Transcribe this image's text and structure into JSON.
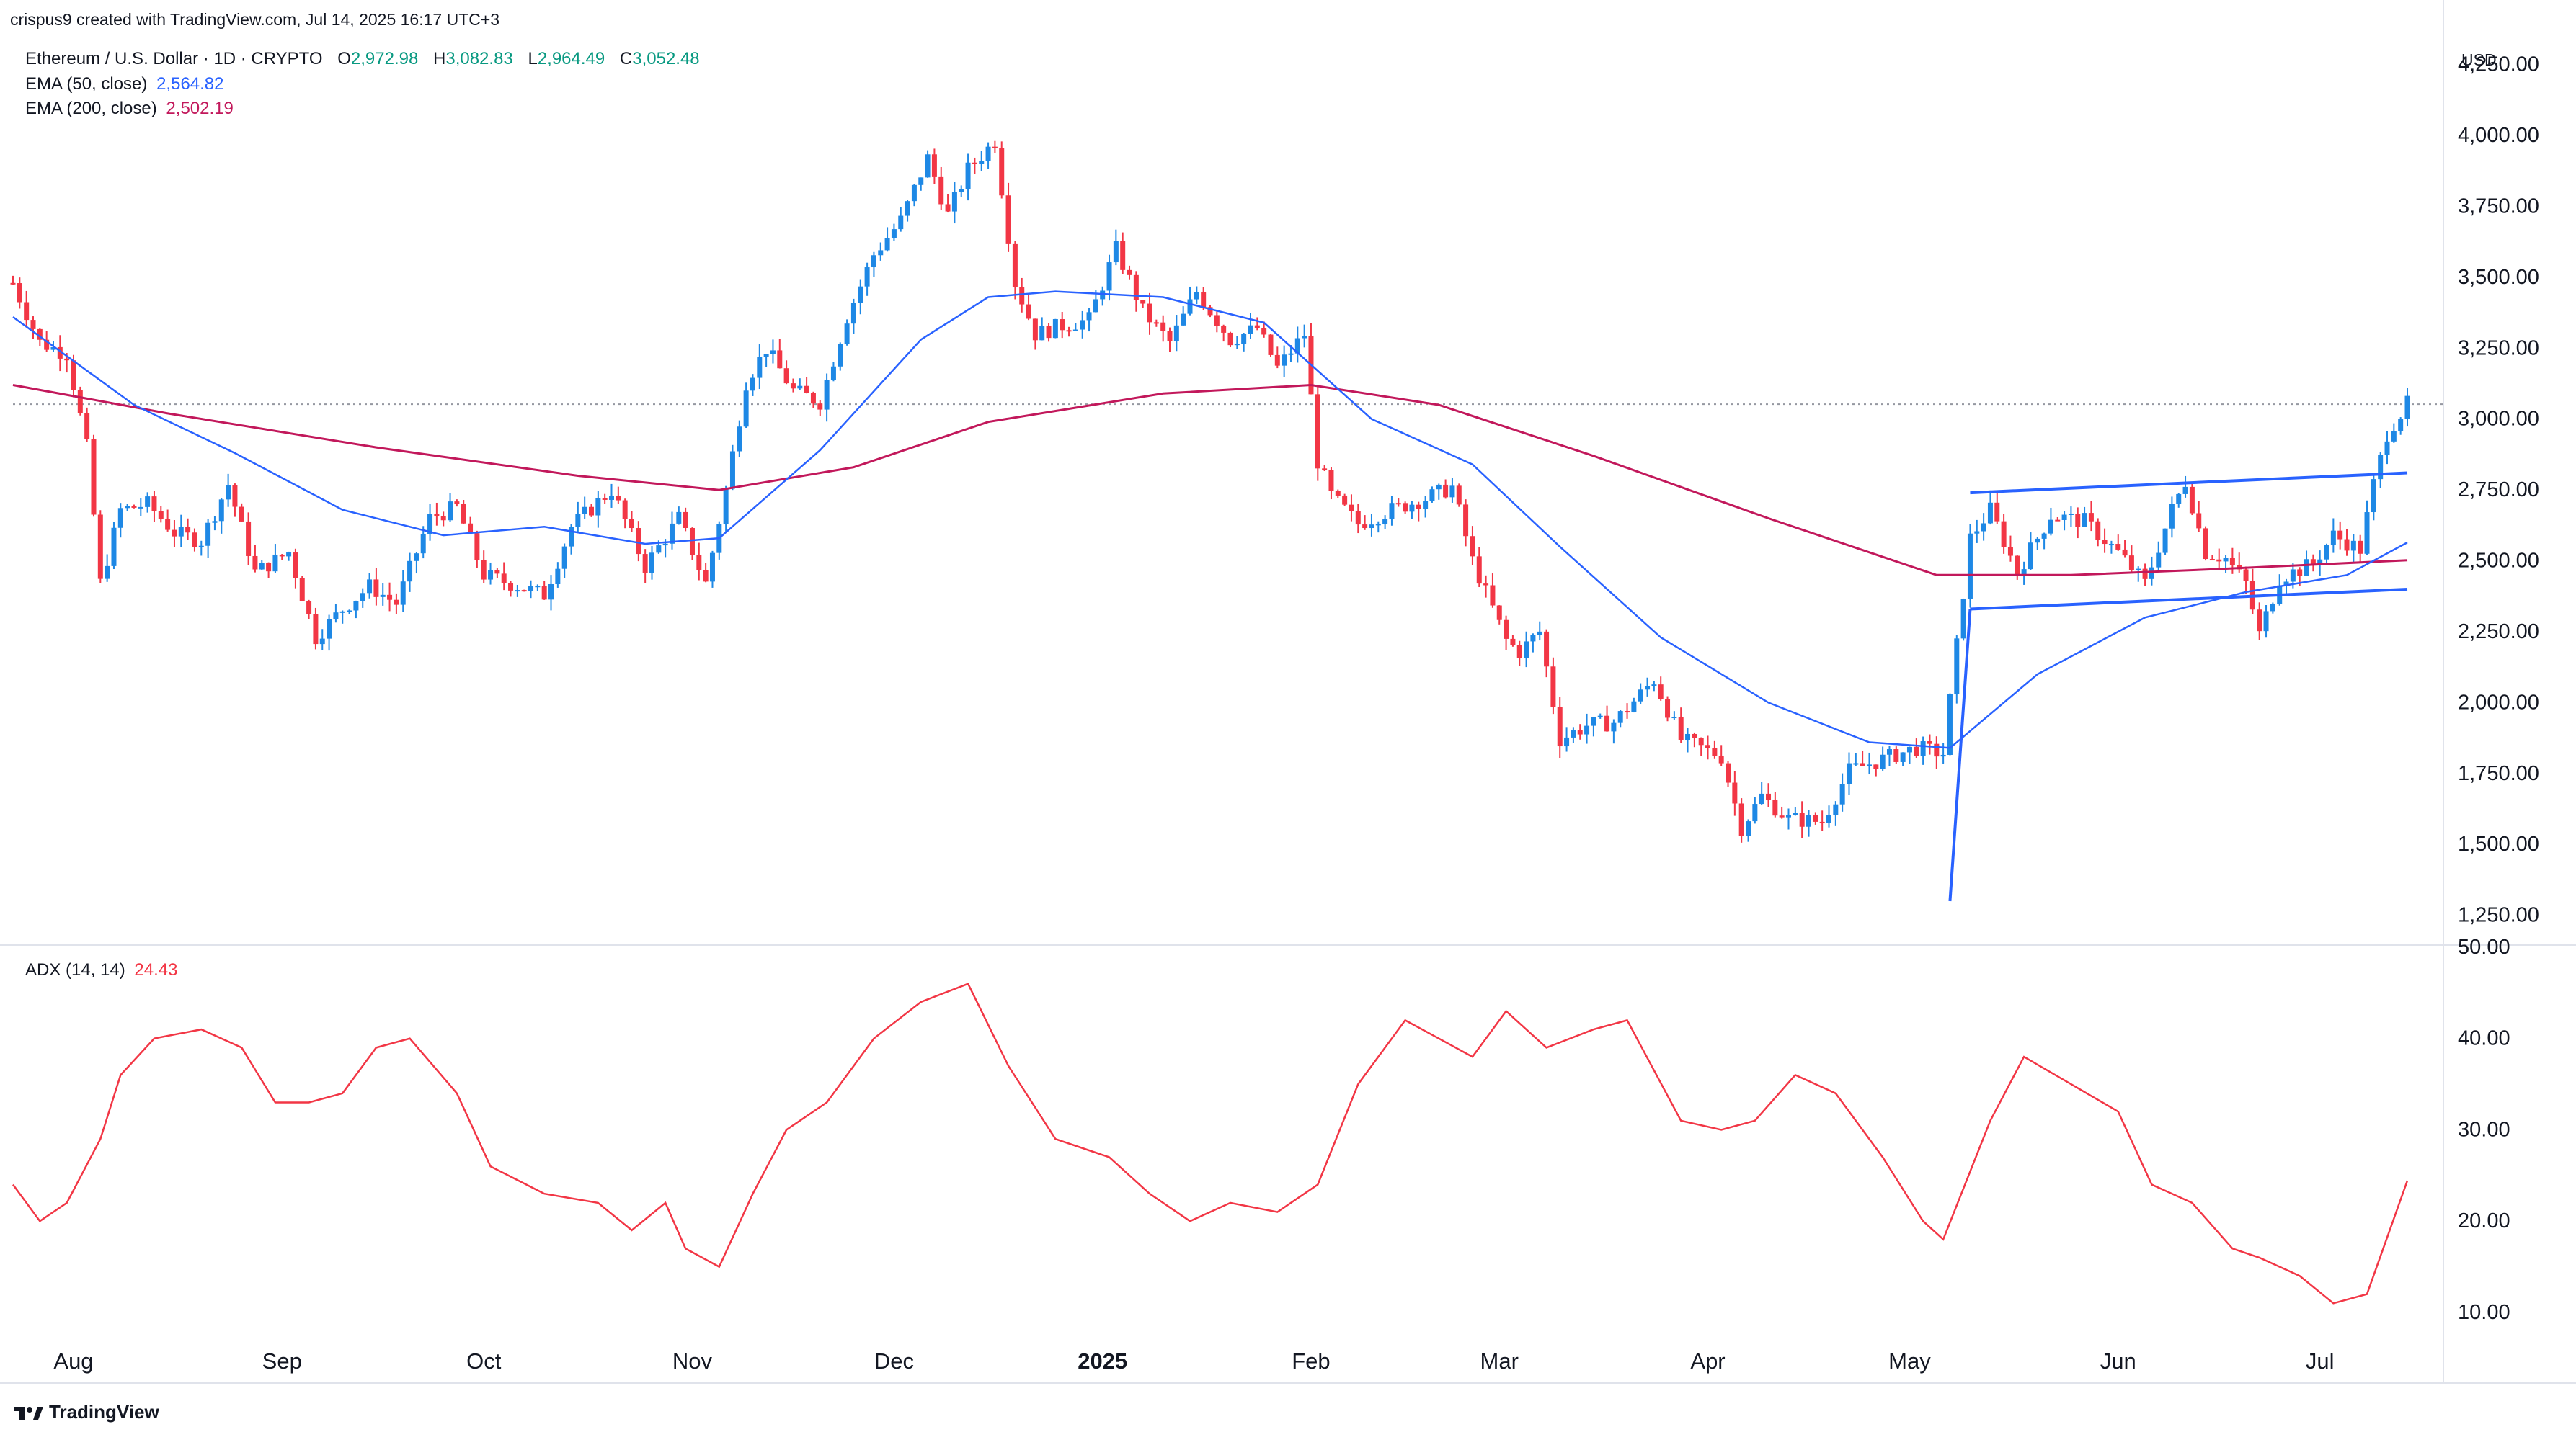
{
  "header": {
    "created_by": "crispus9 created with TradingView.com, Jul 14, 2025 16:17 UTC+3"
  },
  "legend": {
    "symbol": "Ethereum / U.S. Dollar · 1D · CRYPTO",
    "ohlc": {
      "o_label": "O",
      "o": "2,972.98",
      "h_label": "H",
      "h": "3,082.83",
      "l_label": "L",
      "l": "2,964.49",
      "c_label": "C",
      "c": "3,052.48"
    },
    "ema50": {
      "label": "EMA (50, close)",
      "value": "2,564.82",
      "color": "#2962ff"
    },
    "ema200": {
      "label": "EMA (200, close)",
      "value": "2,502.19",
      "color": "#c2185b"
    },
    "adx": {
      "label": "ADX (14, 14)",
      "value": "24.43",
      "color": "#f23645"
    }
  },
  "currency": "USD",
  "footer": {
    "brand": "TradingView"
  },
  "colors": {
    "up": "#1e88e5",
    "down": "#f23645",
    "ema50": "#2962ff",
    "ema200": "#c2185b",
    "adx": "#f23645",
    "trendline": "#2962ff",
    "grid": "#e0e3eb",
    "text": "#131722"
  },
  "chart_data": [
    {
      "type": "candlestick",
      "title": "Ethereum / U.S. Dollar · 1D · CRYPTO",
      "price_axis": {
        "ticks": [
          "1,250.00",
          "1,500.00",
          "1,750.00",
          "2,000.00",
          "2,250.00",
          "2,500.00",
          "2,750.00",
          "3,000.00",
          "3,250.00",
          "3,500.00",
          "3,750.00",
          "4,000.00",
          "4,250.00"
        ],
        "ylim": [
          1150,
          4300
        ]
      },
      "time_axis": {
        "labels": [
          "Aug",
          "Sep",
          "Oct",
          "Nov",
          "Dec",
          "2025",
          "Feb",
          "Mar",
          "Apr",
          "May",
          "Jun",
          "Jul"
        ],
        "label_dates": [
          "2024-08-01",
          "2024-09-01",
          "2024-10-01",
          "2024-11-01",
          "2024-12-01",
          "2025-01-01",
          "2025-02-01",
          "2025-03-01",
          "2025-04-01",
          "2025-05-01",
          "2025-06-01",
          "2025-07-01"
        ],
        "range": [
          "2024-07-23",
          "2025-07-14"
        ]
      },
      "close_series": [
        {
          "date": "2024-07-23",
          "close": 3480
        },
        {
          "date": "2024-07-27",
          "close": 3270
        },
        {
          "date": "2024-07-31",
          "close": 3230
        },
        {
          "date": "2024-08-03",
          "close": 2900
        },
        {
          "date": "2024-08-05",
          "close": 2420
        },
        {
          "date": "2024-08-08",
          "close": 2680
        },
        {
          "date": "2024-08-12",
          "close": 2700
        },
        {
          "date": "2024-08-16",
          "close": 2600
        },
        {
          "date": "2024-08-20",
          "close": 2570
        },
        {
          "date": "2024-08-24",
          "close": 2770
        },
        {
          "date": "2024-08-28",
          "close": 2460
        },
        {
          "date": "2024-09-02",
          "close": 2530
        },
        {
          "date": "2024-09-06",
          "close": 2230
        },
        {
          "date": "2024-09-10",
          "close": 2330
        },
        {
          "date": "2024-09-14",
          "close": 2410
        },
        {
          "date": "2024-09-18",
          "close": 2350
        },
        {
          "date": "2024-09-23",
          "close": 2650
        },
        {
          "date": "2024-09-27",
          "close": 2690
        },
        {
          "date": "2024-10-01",
          "close": 2450
        },
        {
          "date": "2024-10-05",
          "close": 2420
        },
        {
          "date": "2024-10-10",
          "close": 2380
        },
        {
          "date": "2024-10-14",
          "close": 2620
        },
        {
          "date": "2024-10-20",
          "close": 2750
        },
        {
          "date": "2024-10-25",
          "close": 2480
        },
        {
          "date": "2024-10-30",
          "close": 2650
        },
        {
          "date": "2024-11-03",
          "close": 2420
        },
        {
          "date": "2024-11-06",
          "close": 2750
        },
        {
          "date": "2024-11-09",
          "close": 3130
        },
        {
          "date": "2024-11-12",
          "close": 3250
        },
        {
          "date": "2024-11-16",
          "close": 3100
        },
        {
          "date": "2024-11-20",
          "close": 3060
        },
        {
          "date": "2024-11-24",
          "close": 3360
        },
        {
          "date": "2024-11-28",
          "close": 3580
        },
        {
          "date": "2024-12-02",
          "close": 3700
        },
        {
          "date": "2024-12-06",
          "close": 3920
        },
        {
          "date": "2024-12-09",
          "close": 3720
        },
        {
          "date": "2024-12-12",
          "close": 3880
        },
        {
          "date": "2024-12-16",
          "close": 3980
        },
        {
          "date": "2024-12-19",
          "close": 3480
        },
        {
          "date": "2024-12-22",
          "close": 3300
        },
        {
          "date": "2024-12-26",
          "close": 3330
        },
        {
          "date": "2024-12-30",
          "close": 3350
        },
        {
          "date": "2025-01-03",
          "close": 3600
        },
        {
          "date": "2025-01-07",
          "close": 3380
        },
        {
          "date": "2025-01-11",
          "close": 3270
        },
        {
          "date": "2025-01-15",
          "close": 3450
        },
        {
          "date": "2025-01-20",
          "close": 3280
        },
        {
          "date": "2025-01-24",
          "close": 3320
        },
        {
          "date": "2025-01-27",
          "close": 3180
        },
        {
          "date": "2025-01-31",
          "close": 3300
        },
        {
          "date": "2025-02-02",
          "close": 2850
        },
        {
          "date": "2025-02-04",
          "close": 2730
        },
        {
          "date": "2025-02-08",
          "close": 2630
        },
        {
          "date": "2025-02-13",
          "close": 2680
        },
        {
          "date": "2025-02-18",
          "close": 2720
        },
        {
          "date": "2025-02-22",
          "close": 2760
        },
        {
          "date": "2025-02-25",
          "close": 2500
        },
        {
          "date": "2025-03-02",
          "close": 2220
        },
        {
          "date": "2025-03-04",
          "close": 2180
        },
        {
          "date": "2025-03-07",
          "close": 2250
        },
        {
          "date": "2025-03-10",
          "close": 1870
        },
        {
          "date": "2025-03-14",
          "close": 1920
        },
        {
          "date": "2025-03-18",
          "close": 1930
        },
        {
          "date": "2025-03-24",
          "close": 2080
        },
        {
          "date": "2025-03-28",
          "close": 1870
        },
        {
          "date": "2025-04-03",
          "close": 1810
        },
        {
          "date": "2025-04-06",
          "close": 1560
        },
        {
          "date": "2025-04-09",
          "close": 1670
        },
        {
          "date": "2025-04-13",
          "close": 1590
        },
        {
          "date": "2025-04-18",
          "close": 1580
        },
        {
          "date": "2025-04-22",
          "close": 1760
        },
        {
          "date": "2025-04-27",
          "close": 1800
        },
        {
          "date": "2025-05-02",
          "close": 1840
        },
        {
          "date": "2025-05-06",
          "close": 1820
        },
        {
          "date": "2025-05-08",
          "close": 2200
        },
        {
          "date": "2025-05-10",
          "close": 2580
        },
        {
          "date": "2025-05-13",
          "close": 2680
        },
        {
          "date": "2025-05-17",
          "close": 2460
        },
        {
          "date": "2025-05-22",
          "close": 2660
        },
        {
          "date": "2025-05-27",
          "close": 2640
        },
        {
          "date": "2025-06-01",
          "close": 2530
        },
        {
          "date": "2025-06-05",
          "close": 2420
        },
        {
          "date": "2025-06-09",
          "close": 2680
        },
        {
          "date": "2025-06-11",
          "close": 2780
        },
        {
          "date": "2025-06-14",
          "close": 2530
        },
        {
          "date": "2025-06-17",
          "close": 2510
        },
        {
          "date": "2025-06-20",
          "close": 2420
        },
        {
          "date": "2025-06-22",
          "close": 2240
        },
        {
          "date": "2025-06-25",
          "close": 2440
        },
        {
          "date": "2025-06-30",
          "close": 2490
        },
        {
          "date": "2025-07-03",
          "close": 2590
        },
        {
          "date": "2025-07-07",
          "close": 2540
        },
        {
          "date": "2025-07-09",
          "close": 2770
        },
        {
          "date": "2025-07-11",
          "close": 2950
        },
        {
          "date": "2025-07-14",
          "close": 3052.48
        }
      ],
      "ema50": [
        {
          "date": "2024-07-23",
          "value": 3360
        },
        {
          "date": "2024-08-10",
          "value": 3050
        },
        {
          "date": "2024-08-25",
          "value": 2880
        },
        {
          "date": "2024-09-10",
          "value": 2680
        },
        {
          "date": "2024-09-25",
          "value": 2590
        },
        {
          "date": "2024-10-10",
          "value": 2620
        },
        {
          "date": "2024-10-25",
          "value": 2560
        },
        {
          "date": "2024-11-05",
          "value": 2580
        },
        {
          "date": "2024-11-20",
          "value": 2890
        },
        {
          "date": "2024-12-05",
          "value": 3280
        },
        {
          "date": "2024-12-15",
          "value": 3430
        },
        {
          "date": "2024-12-25",
          "value": 3450
        },
        {
          "date": "2025-01-10",
          "value": 3430
        },
        {
          "date": "2025-01-25",
          "value": 3340
        },
        {
          "date": "2025-02-10",
          "value": 3000
        },
        {
          "date": "2025-02-25",
          "value": 2840
        },
        {
          "date": "2025-03-10",
          "value": 2550
        },
        {
          "date": "2025-03-25",
          "value": 2230
        },
        {
          "date": "2025-04-10",
          "value": 2000
        },
        {
          "date": "2025-04-25",
          "value": 1860
        },
        {
          "date": "2025-05-07",
          "value": 1840
        },
        {
          "date": "2025-05-20",
          "value": 2100
        },
        {
          "date": "2025-06-05",
          "value": 2300
        },
        {
          "date": "2025-06-20",
          "value": 2390
        },
        {
          "date": "2025-07-05",
          "value": 2450
        },
        {
          "date": "2025-07-14",
          "value": 2564.82
        }
      ],
      "ema200": [
        {
          "date": "2024-07-23",
          "value": 3120
        },
        {
          "date": "2024-08-15",
          "value": 3020
        },
        {
          "date": "2024-09-15",
          "value": 2900
        },
        {
          "date": "2024-10-15",
          "value": 2800
        },
        {
          "date": "2024-11-05",
          "value": 2750
        },
        {
          "date": "2024-11-25",
          "value": 2830
        },
        {
          "date": "2024-12-15",
          "value": 2990
        },
        {
          "date": "2025-01-10",
          "value": 3090
        },
        {
          "date": "2025-02-01",
          "value": 3120
        },
        {
          "date": "2025-02-20",
          "value": 3050
        },
        {
          "date": "2025-03-15",
          "value": 2870
        },
        {
          "date": "2025-04-10",
          "value": 2650
        },
        {
          "date": "2025-05-05",
          "value": 2450
        },
        {
          "date": "2025-05-25",
          "value": 2450
        },
        {
          "date": "2025-06-15",
          "value": 2470
        },
        {
          "date": "2025-07-14",
          "value": 2502.19
        }
      ],
      "annotations": [
        {
          "type": "trendline",
          "from": {
            "date": "2025-05-07",
            "price": 1300
          },
          "to": {
            "date": "2025-05-10",
            "price": 2330
          }
        },
        {
          "type": "trendline",
          "from": {
            "date": "2025-05-10",
            "price": 2330
          },
          "to": {
            "date": "2025-07-14",
            "price": 2400
          }
        },
        {
          "type": "trendline",
          "from": {
            "date": "2025-05-10",
            "price": 2740
          },
          "to": {
            "date": "2025-07-14",
            "price": 2810
          }
        }
      ]
    },
    {
      "type": "line",
      "title": "ADX (14, 14)",
      "y_axis": {
        "ticks": [
          "10.00",
          "20.00",
          "30.00",
          "40.00",
          "50.00"
        ],
        "ylim": [
          7,
          50
        ]
      },
      "series": [
        {
          "name": "ADX (14, 14)",
          "values": [
            {
              "date": "2024-07-23",
              "value": 24
            },
            {
              "date": "2024-07-27",
              "value": 20
            },
            {
              "date": "2024-07-31",
              "value": 22
            },
            {
              "date": "2024-08-05",
              "value": 29
            },
            {
              "date": "2024-08-08",
              "value": 36
            },
            {
              "date": "2024-08-13",
              "value": 40
            },
            {
              "date": "2024-08-20",
              "value": 41
            },
            {
              "date": "2024-08-26",
              "value": 39
            },
            {
              "date": "2024-08-31",
              "value": 33
            },
            {
              "date": "2024-09-05",
              "value": 33
            },
            {
              "date": "2024-09-10",
              "value": 34
            },
            {
              "date": "2024-09-15",
              "value": 39
            },
            {
              "date": "2024-09-20",
              "value": 40
            },
            {
              "date": "2024-09-27",
              "value": 34
            },
            {
              "date": "2024-10-02",
              "value": 26
            },
            {
              "date": "2024-10-10",
              "value": 23
            },
            {
              "date": "2024-10-18",
              "value": 22
            },
            {
              "date": "2024-10-23",
              "value": 19
            },
            {
              "date": "2024-10-28",
              "value": 22
            },
            {
              "date": "2024-10-31",
              "value": 17
            },
            {
              "date": "2024-11-05",
              "value": 15
            },
            {
              "date": "2024-11-10",
              "value": 23
            },
            {
              "date": "2024-11-15",
              "value": 30
            },
            {
              "date": "2024-11-21",
              "value": 33
            },
            {
              "date": "2024-11-28",
              "value": 40
            },
            {
              "date": "2024-12-05",
              "value": 44
            },
            {
              "date": "2024-12-12",
              "value": 46
            },
            {
              "date": "2024-12-18",
              "value": 37
            },
            {
              "date": "2024-12-25",
              "value": 29
            },
            {
              "date": "2025-01-02",
              "value": 27
            },
            {
              "date": "2025-01-08",
              "value": 23
            },
            {
              "date": "2025-01-14",
              "value": 20
            },
            {
              "date": "2025-01-20",
              "value": 22
            },
            {
              "date": "2025-01-27",
              "value": 21
            },
            {
              "date": "2025-02-02",
              "value": 24
            },
            {
              "date": "2025-02-08",
              "value": 35
            },
            {
              "date": "2025-02-15",
              "value": 42
            },
            {
              "date": "2025-02-20",
              "value": 40
            },
            {
              "date": "2025-02-25",
              "value": 38
            },
            {
              "date": "2025-03-02",
              "value": 43
            },
            {
              "date": "2025-03-08",
              "value": 39
            },
            {
              "date": "2025-03-15",
              "value": 41
            },
            {
              "date": "2025-03-20",
              "value": 42
            },
            {
              "date": "2025-03-28",
              "value": 31
            },
            {
              "date": "2025-04-03",
              "value": 30
            },
            {
              "date": "2025-04-08",
              "value": 31
            },
            {
              "date": "2025-04-14",
              "value": 36
            },
            {
              "date": "2025-04-20",
              "value": 34
            },
            {
              "date": "2025-04-27",
              "value": 27
            },
            {
              "date": "2025-05-03",
              "value": 20
            },
            {
              "date": "2025-05-06",
              "value": 18
            },
            {
              "date": "2025-05-13",
              "value": 31
            },
            {
              "date": "2025-05-18",
              "value": 38
            },
            {
              "date": "2025-05-25",
              "value": 35
            },
            {
              "date": "2025-06-01",
              "value": 32
            },
            {
              "date": "2025-06-06",
              "value": 24
            },
            {
              "date": "2025-06-12",
              "value": 22
            },
            {
              "date": "2025-06-18",
              "value": 17
            },
            {
              "date": "2025-06-22",
              "value": 16
            },
            {
              "date": "2025-06-28",
              "value": 14
            },
            {
              "date": "2025-07-03",
              "value": 11
            },
            {
              "date": "2025-07-08",
              "value": 12
            },
            {
              "date": "2025-07-14",
              "value": 24.43
            }
          ]
        }
      ]
    }
  ]
}
